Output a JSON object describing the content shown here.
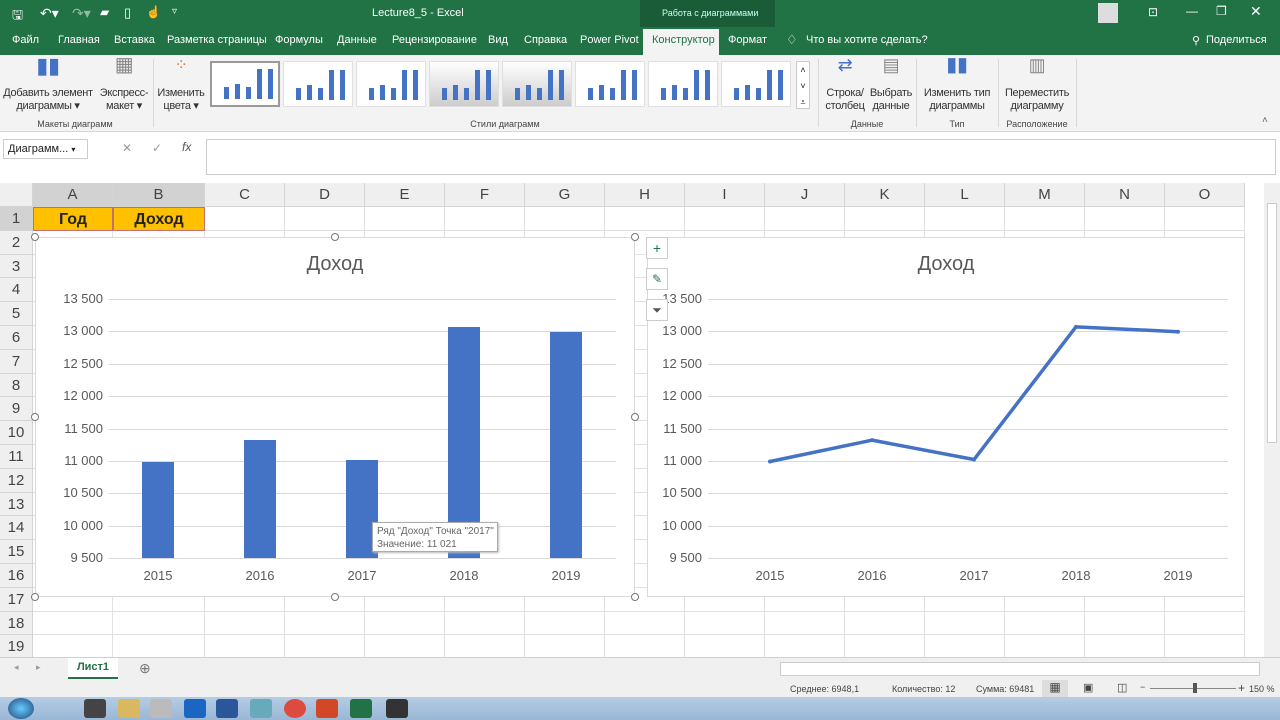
{
  "window": {
    "title": "Lecture8_5  -  Excel",
    "context_tab": "Работа с диаграммами",
    "share": "Поделиться",
    "search": "Что вы хотите сделать?"
  },
  "tabs": [
    "Файл",
    "Главная",
    "Вставка",
    "Разметка страницы",
    "Формулы",
    "Данные",
    "Рецензирование",
    "Вид",
    "Справка",
    "Power Pivot",
    "Конструктор",
    "Формат"
  ],
  "active_tab": "Конструктор",
  "ribbon": {
    "add_element": "Добавить элемент",
    "add_element2": "диаграммы ▾",
    "express": "Экспресс-",
    "express2": "макет ▾",
    "colors": "Изменить",
    "colors2": "цвета ▾",
    "group_layouts": "Макеты диаграмм",
    "group_styles": "Стили диаграмм",
    "row_col": "Строка/",
    "row_col2": "столбец",
    "select_data": "Выбрать",
    "select_data2": "данные",
    "group_data": "Данные",
    "change_type": "Изменить тип",
    "change_type2": "диаграммы",
    "group_type": "Тип",
    "move": "Переместить",
    "move2": "диаграмму",
    "group_location": "Расположение"
  },
  "formula_bar": {
    "name_box": "Диаграмм...",
    "fx": "fx",
    "value": ""
  },
  "columns": [
    "A",
    "B",
    "C",
    "D",
    "E",
    "F",
    "G",
    "H",
    "I",
    "J",
    "K",
    "L",
    "M",
    "N",
    "O"
  ],
  "rows": [
    "1",
    "2",
    "3",
    "4",
    "5",
    "6",
    "7",
    "8",
    "9",
    "10",
    "11",
    "12",
    "13",
    "14",
    "15",
    "16",
    "17",
    "18",
    "19"
  ],
  "cells": {
    "A1": "Год",
    "B1": "Доход"
  },
  "accent": "#217346",
  "series_color": "#4472c4",
  "header_fill": "#ffc000",
  "chart_data": [
    {
      "type": "bar",
      "title": "Доход",
      "categories": [
        "2015",
        "2016",
        "2017",
        "2018",
        "2019"
      ],
      "values": [
        10990,
        11320,
        11021,
        13070,
        12995
      ],
      "ylim": [
        9500,
        13500
      ],
      "yticks": [
        "9 500",
        "10 000",
        "10 500",
        "11 000",
        "11 500",
        "12 000",
        "12 500",
        "13 000",
        "13 500"
      ],
      "grid": true
    },
    {
      "type": "line",
      "title": "Доход",
      "categories": [
        "2015",
        "2016",
        "2017",
        "2018",
        "2019"
      ],
      "values": [
        10990,
        11320,
        11021,
        13070,
        12995
      ],
      "ylim": [
        9500,
        13500
      ],
      "yticks": [
        "9 500",
        "10 000",
        "10 500",
        "11 000",
        "11 500",
        "12 000",
        "12 500",
        "13 000",
        "13 500"
      ],
      "grid": true
    }
  ],
  "tooltip": {
    "line1": "Ряд \"Доход\" Точка \"2017\"",
    "line2": "Значение: 11 021"
  },
  "sheet": {
    "name": "Лист1"
  },
  "status": {
    "avg": "Среднее: 6948,1",
    "count": "Количество: 12",
    "sum": "Сумма: 69481",
    "zoom": "150 %"
  }
}
